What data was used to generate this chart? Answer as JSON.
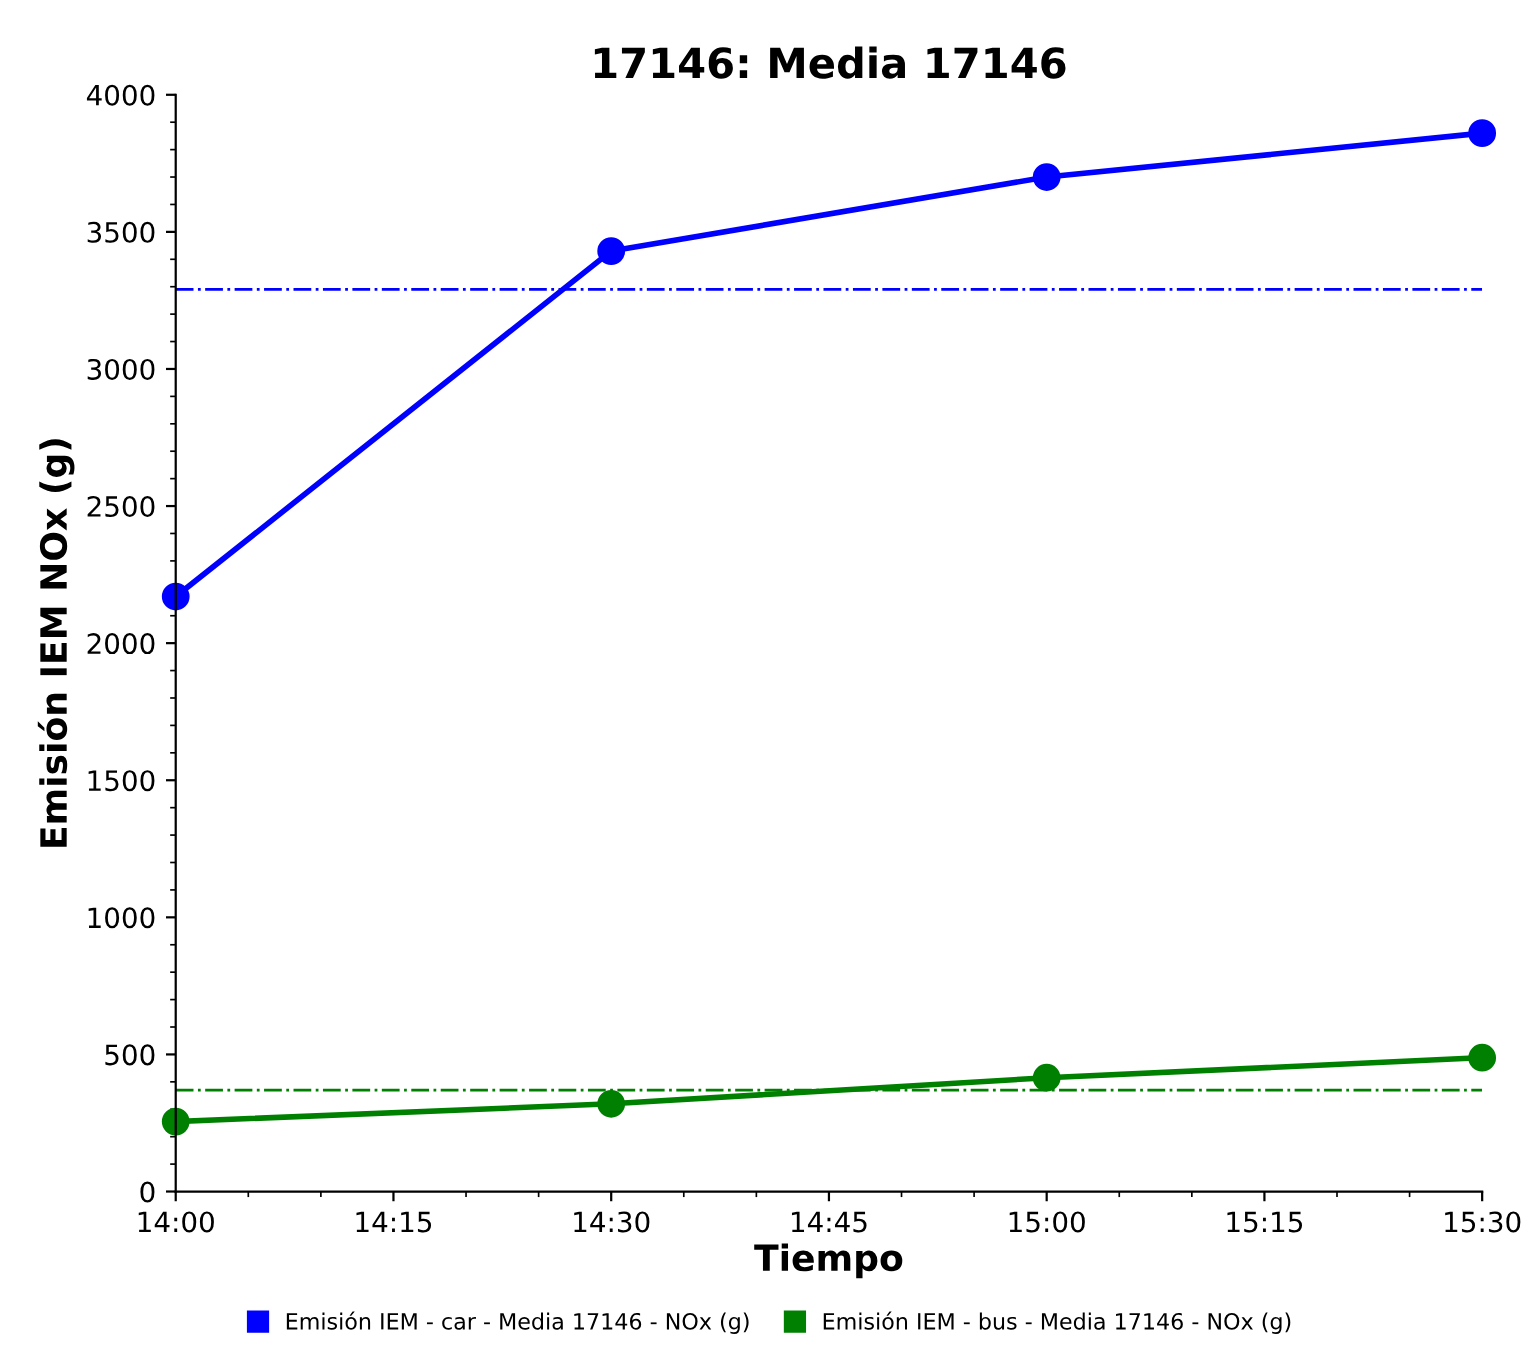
{
  "chart_data": {
    "type": "line",
    "title": "17146: Media 17146",
    "xlabel": "Tiempo",
    "ylabel": "Emisión IEM NOx (g)",
    "x": [
      14,
      14.5,
      15,
      15.5
    ],
    "series": [
      {
        "name": "Emisión IEM - car - Media 17146 - NOx (g)",
        "color": "#0000ff",
        "values": [
          2170,
          3430,
          3700,
          3860
        ]
      },
      {
        "name": "Emisión IEM - bus - Media 17146 - NOx (g)",
        "color": "#008000",
        "values": [
          255,
          320,
          415,
          488
        ]
      }
    ],
    "ref_lines": [
      {
        "axis": "y",
        "value": 3290,
        "color": "#0000ff",
        "line_style": "dashdot"
      },
      {
        "axis": "y",
        "value": 370,
        "color": "#008000",
        "line_style": "dashdot"
      }
    ],
    "xlim": [
      14,
      15.5
    ],
    "xticks": [
      {
        "value": 14,
        "label": "14:00"
      },
      {
        "value": 14.25,
        "label": "14:15"
      },
      {
        "value": 14.5,
        "label": "14:30"
      },
      {
        "value": 14.75,
        "label": "14:45"
      },
      {
        "value": 15,
        "label": "15:00"
      },
      {
        "value": 15.25,
        "label": "15:15"
      },
      {
        "value": 15.5,
        "label": "15:30"
      }
    ],
    "ylim": [
      0,
      4000
    ],
    "yticks": [
      0,
      500,
      1000,
      1500,
      2000,
      2500,
      3000,
      3500,
      4000
    ],
    "grid": false,
    "legend": "bottom",
    "marker": "circle",
    "line_style": "solid"
  }
}
